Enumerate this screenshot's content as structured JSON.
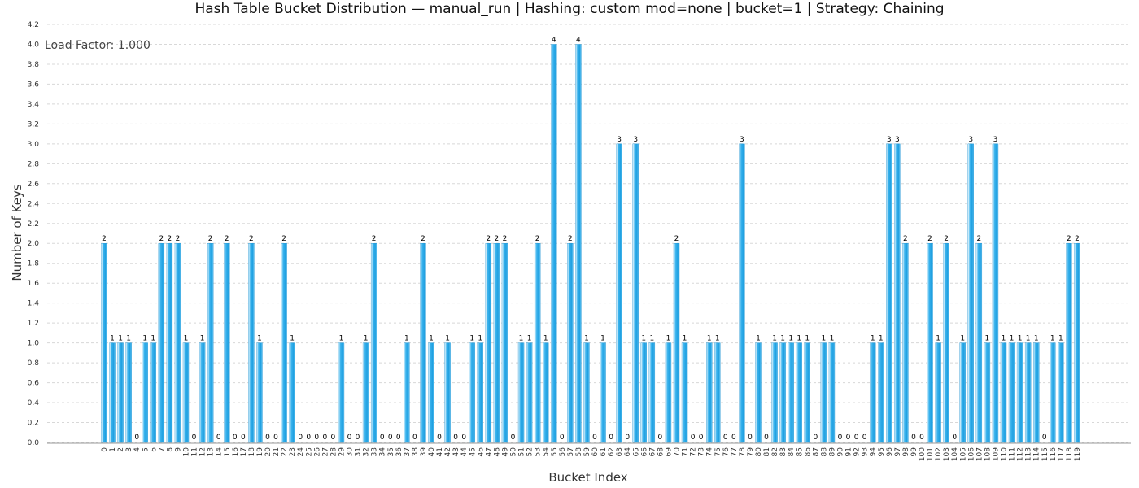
{
  "chart_data": {
    "type": "bar",
    "title": "Hash Table Bucket Distribution — manual_run | Hashing: custom mod=none | bucket=1 | Strategy: Chaining",
    "xlabel": "Bucket Index",
    "ylabel": "Number of Keys",
    "annotation": "Load Factor: 1.000",
    "ylim": [
      0,
      4.2
    ],
    "y_ticks": [
      "0.0",
      "0.2",
      "0.4",
      "0.6",
      "0.8",
      "1.0",
      "1.2",
      "1.4",
      "1.6",
      "1.8",
      "2.0",
      "2.2",
      "2.4",
      "2.6",
      "2.8",
      "3.0",
      "3.2",
      "3.4",
      "3.6",
      "3.8",
      "4.0",
      "4.2"
    ],
    "grid": true,
    "bar_color": "#3cb4ee",
    "categories": [
      "0",
      "1",
      "2",
      "3",
      "4",
      "5",
      "6",
      "7",
      "8",
      "9",
      "10",
      "11",
      "12",
      "13",
      "14",
      "15",
      "16",
      "17",
      "18",
      "19",
      "20",
      "21",
      "22",
      "23",
      "24",
      "25",
      "26",
      "27",
      "28",
      "29",
      "30",
      "31",
      "32",
      "33",
      "34",
      "35",
      "36",
      "37",
      "38",
      "39",
      "40",
      "41",
      "42",
      "43",
      "44",
      "45",
      "46",
      "47",
      "48",
      "49",
      "50",
      "51",
      "52",
      "53",
      "54",
      "55",
      "56",
      "57",
      "58",
      "59",
      "60",
      "61",
      "62",
      "63",
      "64",
      "65",
      "66",
      "67",
      "68",
      "69",
      "70",
      "71",
      "72",
      "73",
      "74",
      "75",
      "76",
      "77",
      "78",
      "79",
      "80",
      "81",
      "82",
      "83",
      "84",
      "85",
      "86",
      "87",
      "88",
      "89",
      "90",
      "91",
      "92",
      "93",
      "94",
      "95",
      "96",
      "97",
      "98",
      "99",
      "100",
      "101",
      "102",
      "103",
      "104",
      "105",
      "106",
      "107",
      "108",
      "109",
      "110",
      "111",
      "112",
      "113",
      "114",
      "115",
      "116",
      "117",
      "118",
      "119"
    ],
    "values": [
      2,
      1,
      1,
      1,
      0,
      1,
      1,
      2,
      2,
      2,
      1,
      0,
      1,
      2,
      0,
      2,
      0,
      0,
      2,
      1,
      0,
      0,
      2,
      1,
      0,
      0,
      0,
      0,
      0,
      1,
      0,
      0,
      1,
      2,
      0,
      0,
      0,
      1,
      0,
      2,
      1,
      0,
      1,
      0,
      0,
      1,
      1,
      2,
      2,
      2,
      0,
      1,
      1,
      2,
      1,
      4,
      0,
      2,
      4,
      1,
      0,
      1,
      0,
      3,
      0,
      3,
      1,
      1,
      0,
      1,
      2,
      1,
      0,
      0,
      1,
      1,
      0,
      0,
      3,
      0,
      1,
      0,
      1,
      1,
      1,
      1,
      1,
      0,
      1,
      1,
      0,
      0,
      0,
      0,
      1,
      1,
      3,
      3,
      2,
      0,
      0,
      2,
      1,
      2,
      0,
      1,
      3,
      2,
      1,
      3,
      1,
      1,
      1,
      1,
      1,
      0,
      1,
      1,
      2,
      2
    ]
  }
}
